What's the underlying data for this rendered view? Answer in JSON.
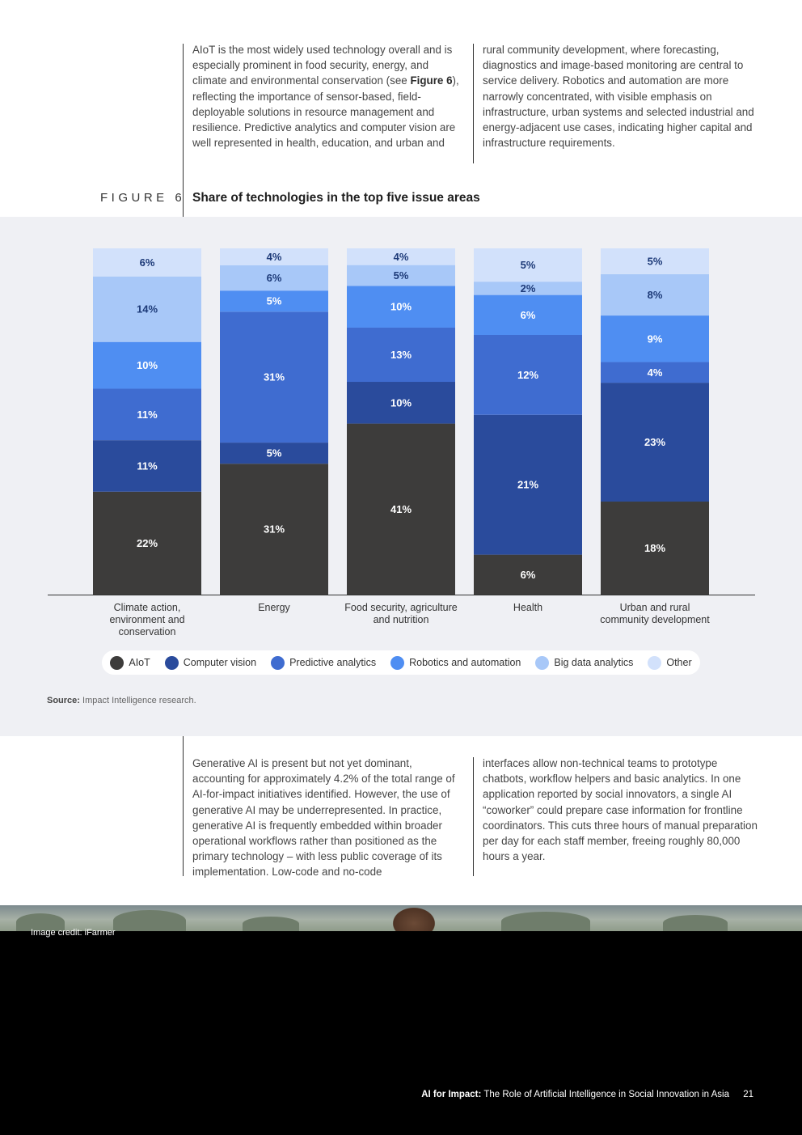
{
  "intro": {
    "col1_pre": "AIoT is the most widely used technology overall and is especially prominent in food security, energy, and climate and environmental conservation (see ",
    "col1_ref": "Figure 6",
    "col1_post": "), reflecting the importance of sensor-based, field-deployable solutions in resource management and resilience. Predictive analytics and computer vision are well represented in health, education, and urban and",
    "col2": "rural community development, where forecasting, diagnostics and image-based monitoring are central to service delivery. Robotics and automation are more narrowly concentrated, with visible emphasis on infrastructure, urban systems and selected industrial and energy-adjacent use cases, indicating higher capital and infrastructure requirements."
  },
  "figure": {
    "label": "FIGURE 6",
    "title": "Share of technologies in the top five issue areas"
  },
  "chart_data": {
    "type": "bar",
    "stacked": true,
    "categories": [
      "Climate action, environment and conservation",
      "Energy",
      "Food security, agriculture and nutrition",
      "Health",
      "Urban and rural community development"
    ],
    "series": [
      {
        "name": "AIoT",
        "color": "#3d3c3b",
        "values": [
          22,
          31,
          41,
          6,
          18
        ]
      },
      {
        "name": "Computer vision",
        "color": "#2a4b9c",
        "values": [
          11,
          5,
          10,
          21,
          23
        ]
      },
      {
        "name": "Predictive analytics",
        "color": "#3f6cd0",
        "values": [
          11,
          31,
          13,
          12,
          4
        ]
      },
      {
        "name": "Robotics and automation",
        "color": "#4f8ef2",
        "values": [
          10,
          5,
          10,
          6,
          9
        ]
      },
      {
        "name": "Big data analytics",
        "color": "#a8c8f8",
        "values": [
          14,
          6,
          5,
          2,
          8
        ]
      },
      {
        "name": "Other",
        "color": "#d2e1fb",
        "values": [
          6,
          4,
          4,
          5,
          5
        ]
      }
    ],
    "data_labels_suffix": "%",
    "legend": "bottom",
    "grid": false
  },
  "source": {
    "label": "Source:",
    "text": "Impact Intelligence research."
  },
  "body2": {
    "col1": "Generative AI is present but not yet dominant, accounting for approximately 4.2% of the total range of AI-for-impact initiatives identified. However, the use of generative AI may be underrepresented. In practice, generative AI is frequently embedded within broader operational workflows rather than positioned as the primary technology – with less public coverage of its implementation. Low-code and no-code",
    "col2": "interfaces allow non-technical teams to prototype chatbots, workflow helpers and basic analytics. In one application reported by social innovators, a single AI “coworker” could prepare case information for frontline coordinators. This cuts three hours of manual preparation per day for each staff member, freeing roughly 80,000 hours a year."
  },
  "image_credit": "Image credit: iFarmer",
  "footer": {
    "title": "AI for Impact:",
    "subtitle": "The Role of Artificial Intelligence in Social Innovation in Asia",
    "page": "21"
  }
}
